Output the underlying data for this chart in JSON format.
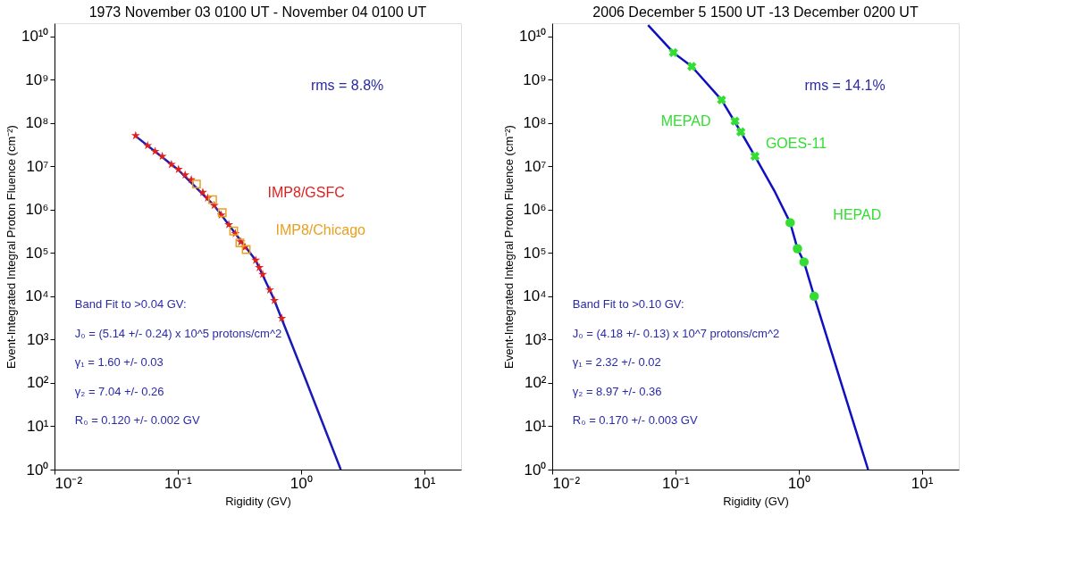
{
  "chart_data": [
    {
      "type": "scatter",
      "title": "1973 November 03 0100 UT - November 04 0100 UT",
      "xlabel": "Rigidity (GV)",
      "ylabel": "Event-Integrated Integral Proton Fluence (cm⁻²)",
      "log": "xy",
      "grid": false,
      "legend": false,
      "xlim": [
        0.01,
        20
      ],
      "ylim": [
        1,
        20000000000
      ],
      "xticks": [
        {
          "value": 0.01,
          "label": "10⁻²"
        },
        {
          "value": 0.1,
          "label": "10⁻¹"
        },
        {
          "value": 1,
          "label": "10⁰"
        },
        {
          "value": 10,
          "label": "10¹"
        }
      ],
      "yticks": [
        {
          "value": 1,
          "label": "10⁰"
        },
        {
          "value": 10,
          "label": "10¹"
        },
        {
          "value": 100,
          "label": "10²"
        },
        {
          "value": 1000,
          "label": "10³"
        },
        {
          "value": 10000,
          "label": "10⁴"
        },
        {
          "value": 100000,
          "label": "10⁵"
        },
        {
          "value": 1000000,
          "label": "10⁶"
        },
        {
          "value": 10000000,
          "label": "10⁷"
        },
        {
          "value": 100000000,
          "label": "10⁸"
        },
        {
          "value": 1000000000,
          "label": "10⁹"
        },
        {
          "value": 10000000000,
          "label": "10¹⁰"
        }
      ],
      "annotations": [
        "rms = 8.8%",
        "Band Fit to >0.04 GV:",
        "J₀ = (5.14 +/- 0.24) x 10^5 protons/cm^2",
        "γ₁ = 1.60 +/- 0.03",
        "γ₂ = 7.04 +/- 0.26",
        "R₀ = 0.120 +/- 0.002 GV"
      ],
      "series": [
        {
          "type": "line",
          "color": "#1a1ab4",
          "line_style": "solid",
          "x": [
            0.045,
            0.1,
            0.2,
            0.3,
            0.43,
            0.6,
            1.02,
            2.11
          ],
          "values": [
            51000000,
            8500000,
            1200000,
            260000,
            68000,
            9000,
            200,
            1
          ]
        },
        {
          "name": "IMP8/GSFC",
          "color": "#e02020",
          "marker": "star",
          "x": [
            0.0456,
            0.057,
            0.0656,
            0.075,
            0.089,
            0.1015,
            0.115,
            0.129,
            0.16,
            0.175,
            0.198,
            0.226,
            0.26,
            0.294,
            0.325,
            0.352,
            0.43,
            0.46,
            0.49,
            0.56,
            0.61,
            0.7
          ],
          "values": [
            51000000,
            30000000,
            22000000,
            17000000,
            11000000,
            8500000,
            6300000,
            4900000,
            2500000,
            1850000,
            1250000,
            750000,
            450000,
            280000,
            180000,
            135000,
            68000,
            46000,
            32000,
            14000,
            8000,
            3100
          ]
        },
        {
          "name": "IMP8/Chicago",
          "color": "#e8a020",
          "marker": "square",
          "x": [
            0.142,
            0.192,
            0.23,
            0.285,
            0.32,
            0.36
          ],
          "values": [
            3900000,
            1700000,
            850000,
            320000,
            170000,
            120000
          ]
        }
      ]
    },
    {
      "type": "scatter",
      "title": "2006 December 5 1500 UT -13 December 0200 UT",
      "xlabel": "Rigidity (GV)",
      "ylabel": "Event-Integrated Integral Proton Fluence (cm⁻²)",
      "log": "xy",
      "grid": false,
      "legend": false,
      "xlim": [
        0.01,
        20
      ],
      "ylim": [
        1,
        20000000000
      ],
      "xticks": [
        {
          "value": 0.01,
          "label": "10⁻²"
        },
        {
          "value": 0.1,
          "label": "10⁻¹"
        },
        {
          "value": 1,
          "label": "10⁰"
        },
        {
          "value": 10,
          "label": "10¹"
        }
      ],
      "yticks": [
        {
          "value": 1,
          "label": "10⁰"
        },
        {
          "value": 10,
          "label": "10¹"
        },
        {
          "value": 100,
          "label": "10²"
        },
        {
          "value": 1000,
          "label": "10³"
        },
        {
          "value": 10000,
          "label": "10⁴"
        },
        {
          "value": 100000,
          "label": "10⁵"
        },
        {
          "value": 1000000,
          "label": "10⁶"
        },
        {
          "value": 10000000,
          "label": "10⁷"
        },
        {
          "value": 100000000,
          "label": "10⁸"
        },
        {
          "value": 1000000000,
          "label": "10⁹"
        },
        {
          "value": 10000000000,
          "label": "10¹⁰"
        }
      ],
      "annotations": [
        "rms = 14.1%",
        "GOES-11",
        "Band Fit to >0.10 GV:",
        "J₀ = (4.18 +/- 0.13) x 10^7 protons/cm^2",
        "γ₁ = 2.32 +/- 0.02",
        "γ₂ = 8.97 +/- 0.36",
        "R₀ = 0.170 +/- 0.003 GV"
      ],
      "series": [
        {
          "type": "line",
          "color": "#1010c0",
          "line_style": "solid",
          "x": [
            0.06,
            0.0964,
            0.136,
            0.237,
            0.34,
            0.443,
            0.646,
            0.855,
            0.98,
            1.107,
            1.34,
            3.67
          ],
          "values": [
            18000000000,
            4200000000,
            2000000000,
            340000000,
            62000000,
            17000000,
            2500000,
            500000,
            126000,
            62000,
            10000,
            1
          ]
        },
        {
          "name": "MEPAD",
          "color": "#33dd33",
          "marker": "cross",
          "x": [
            0.0964,
            0.136,
            0.237,
            0.305,
            0.34,
            0.443
          ],
          "values": [
            4200000000,
            2000000000,
            340000000,
            110000000,
            62000000,
            17000000
          ]
        },
        {
          "name": "HEPAD",
          "color": "#33dd33",
          "marker": "circle",
          "x": [
            0.855,
            0.98,
            1.107,
            1.34
          ],
          "values": [
            500000,
            126000,
            62000,
            10000
          ]
        }
      ]
    }
  ]
}
